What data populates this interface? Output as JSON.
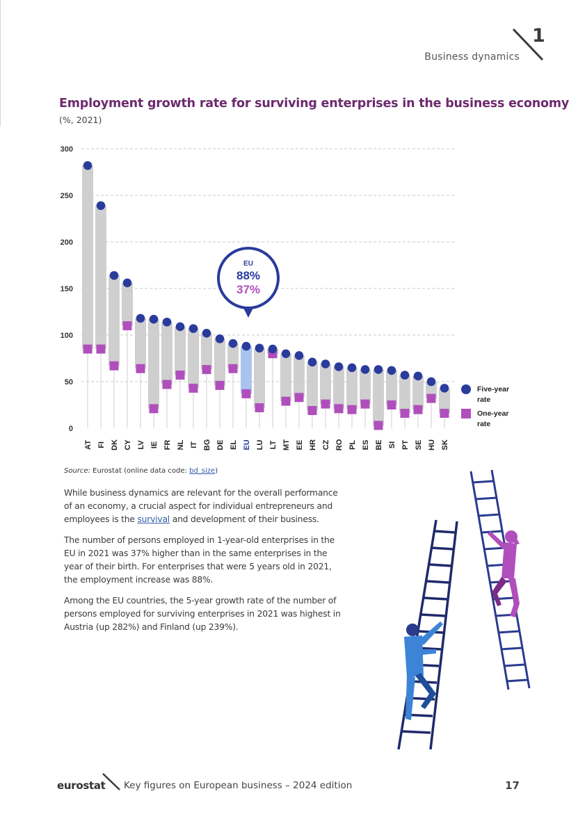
{
  "header": {
    "chapter_number": "1",
    "chapter_title": "Business dynamics"
  },
  "chart_data": {
    "type": "bar",
    "title": "Employment growth rate for surviving enterprises in the business economy",
    "subtitle": "(%, 2021)",
    "ylim": [
      0,
      300
    ],
    "yticks": [
      0,
      50,
      100,
      150,
      200,
      250,
      300
    ],
    "grid": true,
    "legend_position": "right",
    "categories": [
      "AT",
      "FI",
      "DK",
      "CY",
      "LV",
      "IE",
      "FR",
      "NL",
      "IT",
      "BG",
      "DE",
      "EL",
      "EU",
      "LU",
      "LT",
      "MT",
      "EE",
      "HR",
      "CZ",
      "RO",
      "PL",
      "ES",
      "BE",
      "SI",
      "PT",
      "SE",
      "HU",
      "SK"
    ],
    "highlight_category": "EU",
    "series": [
      {
        "name": "Five-year rate",
        "marker": "circle",
        "color": "#2a3b9c",
        "values": [
          282,
          239,
          164,
          156,
          118,
          117,
          114,
          109,
          107,
          102,
          96,
          91,
          88,
          86,
          85,
          80,
          78,
          71,
          69,
          66,
          65,
          63,
          63,
          62,
          57,
          56,
          50,
          43
        ]
      },
      {
        "name": "One-year rate",
        "marker": "square",
        "color": "#b04fbc",
        "values": [
          85,
          85,
          67,
          110,
          64,
          21,
          47,
          57,
          43,
          63,
          46,
          64,
          37,
          22,
          80,
          29,
          33,
          19,
          26,
          21,
          20,
          26,
          3,
          25,
          16,
          20,
          32,
          16
        ]
      }
    ],
    "callout": {
      "label": "EU",
      "five_year": "88%",
      "one_year": "37%"
    }
  },
  "source": {
    "label": "Source:",
    "text": "Eurostat (online data code:",
    "link": "bd_size",
    "suffix": ")"
  },
  "paragraphs": [
    {
      "before": "While business dynamics are relevant for the overall performance of an economy, a crucial aspect for individual entrepreneurs and employees is the ",
      "link": "survival",
      "after": " and development of their business."
    },
    {
      "text": "The number of persons employed in 1-year-old enterprises in the EU in 2021 was 37% higher than in the same enterprises in the year of their birth. For enterprises that were 5 years old in 2021, the employment increase was 88%."
    },
    {
      "text": "Among the EU countries, the 5-year growth rate of the number of persons employed for surviving enterprises in 2021 was highest in Austria (up 282%) and Finland (up 239%)."
    }
  ],
  "footer": {
    "logo": "eurostat",
    "publication": "Key figures on European business – 2024 edition",
    "page_number": "17"
  },
  "colors": {
    "title": "#6c2a6e",
    "five_year": "#2a3b9c",
    "one_year": "#b04fbc",
    "range_bar": "#cfcfcf",
    "eu_bar": "#a9c4ee",
    "link": "#2e5da8"
  }
}
